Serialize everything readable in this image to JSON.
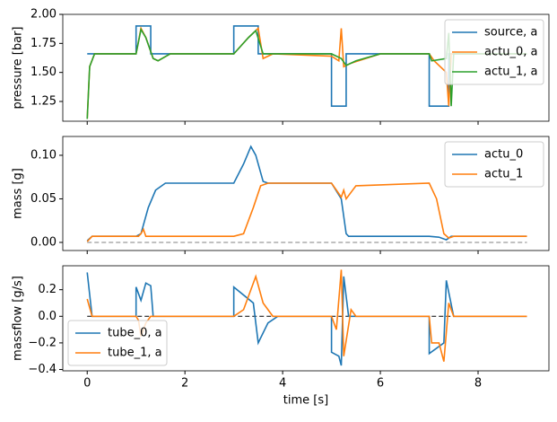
{
  "chart_data": [
    {
      "type": "line",
      "ylabel": "pressure [bar]",
      "xlim": [
        -0.5,
        9.45
      ],
      "ylim": [
        1.08,
        2.0
      ],
      "xticks": [
        0,
        2,
        4,
        6,
        8
      ],
      "yticks": [
        1.25,
        {
          "value": 1.5,
          "label": "1.50"
        },
        1.75,
        {
          "value": 2.0,
          "label": "2.00"
        }
      ],
      "legend": "upper-right",
      "series": [
        {
          "name": "source, a",
          "color": "#1f77b4",
          "x": [
            0,
            1,
            1,
            1.3,
            1.3,
            3,
            3,
            3.5,
            3.5,
            5,
            5,
            5.3,
            5.3,
            7,
            7,
            7.4,
            7.4,
            9
          ],
          "values": [
            1.66,
            1.66,
            1.9,
            1.9,
            1.66,
            1.66,
            1.9,
            1.9,
            1.66,
            1.66,
            1.21,
            1.21,
            1.66,
            1.66,
            1.21,
            1.21,
            1.66,
            1.66
          ]
        },
        {
          "name": "actu_0, a",
          "color": "#ff7f0e",
          "x": [
            0,
            0.05,
            0.15,
            1.0,
            1.1,
            1.2,
            1.35,
            1.45,
            1.7,
            3.0,
            3.3,
            3.5,
            3.6,
            3.8,
            5.0,
            5.15,
            5.2,
            5.25,
            5.4,
            6.0,
            7.0,
            7.1,
            7.35,
            7.4,
            7.45,
            7.6,
            9
          ],
          "values": [
            1.1,
            1.55,
            1.66,
            1.66,
            1.88,
            1.8,
            1.62,
            1.6,
            1.66,
            1.66,
            1.8,
            1.88,
            1.62,
            1.66,
            1.64,
            1.6,
            1.88,
            1.55,
            1.58,
            1.66,
            1.66,
            1.6,
            1.5,
            1.21,
            1.66,
            1.66,
            1.66
          ]
        },
        {
          "name": "actu_1, a",
          "color": "#2ca02c",
          "x": [
            0,
            0.05,
            0.15,
            1.0,
            1.1,
            1.2,
            1.35,
            1.45,
            1.7,
            3.0,
            3.3,
            3.45,
            3.6,
            3.8,
            5.0,
            5.2,
            5.3,
            5.5,
            6.0,
            7.0,
            7.05,
            7.35,
            7.4,
            7.45,
            7.5,
            9
          ],
          "values": [
            1.1,
            1.55,
            1.66,
            1.66,
            1.87,
            1.8,
            1.62,
            1.6,
            1.66,
            1.66,
            1.8,
            1.86,
            1.66,
            1.66,
            1.66,
            1.62,
            1.56,
            1.6,
            1.66,
            1.66,
            1.6,
            1.62,
            1.84,
            1.21,
            1.66,
            1.66
          ]
        }
      ]
    },
    {
      "type": "line",
      "ylabel": "mass [g]",
      "xlim": [
        -0.5,
        9.45
      ],
      "ylim": [
        -0.0093,
        0.1216
      ],
      "xticks": [
        0,
        2,
        4,
        6,
        8
      ],
      "yticks": [
        {
          "value": 0,
          "label": "0.00"
        },
        0.05,
        {
          "value": 0.1,
          "label": "0.10"
        }
      ],
      "legend": "upper-right",
      "hline": 0,
      "hline_color": "#808080",
      "series": [
        {
          "name": "actu_0",
          "color": "#1f77b4",
          "x": [
            0,
            0.1,
            1.0,
            1.1,
            1.25,
            1.4,
            1.6,
            3.0,
            3.2,
            3.35,
            3.45,
            3.6,
            3.7,
            5.0,
            5.2,
            5.3,
            5.35,
            7.0,
            7.2,
            7.35,
            7.45,
            9
          ],
          "values": [
            0.002,
            0.007,
            0.007,
            0.01,
            0.04,
            0.06,
            0.068,
            0.068,
            0.09,
            0.11,
            0.1,
            0.07,
            0.068,
            0.068,
            0.05,
            0.01,
            0.007,
            0.007,
            0.006,
            0.003,
            0.007,
            0.007
          ]
        },
        {
          "name": "actu_1",
          "color": "#ff7f0e",
          "x": [
            0,
            0.1,
            1.05,
            1.1,
            1.15,
            1.2,
            3.0,
            3.2,
            3.4,
            3.55,
            3.7,
            5.0,
            5.1,
            5.2,
            5.25,
            5.3,
            5.5,
            7.0,
            7.15,
            7.3,
            7.4,
            7.5,
            9
          ],
          "values": [
            0.001,
            0.007,
            0.007,
            0.01,
            0.015,
            0.007,
            0.007,
            0.01,
            0.04,
            0.065,
            0.068,
            0.068,
            0.06,
            0.052,
            0.06,
            0.05,
            0.065,
            0.068,
            0.05,
            0.01,
            0.005,
            0.007,
            0.007
          ]
        }
      ]
    },
    {
      "type": "line",
      "ylabel": "massflow [g/s]",
      "xlabel": "time [s]",
      "xlim": [
        -0.5,
        9.45
      ],
      "ylim": [
        -0.41,
        0.38
      ],
      "xticks": [
        0,
        2,
        4,
        6,
        8
      ],
      "yticks": [
        {
          "value": -0.4,
          "label": "−0.4"
        },
        {
          "value": -0.2,
          "label": "−0.2"
        },
        {
          "value": 0,
          "label": "0.0"
        },
        0.2
      ],
      "legend": "lower-left",
      "hline": 0,
      "hline_color": "#000000",
      "series": [
        {
          "name": "tube_0, a",
          "color": "#1f77b4",
          "x": [
            0,
            0.1,
            1.0,
            1.0,
            1.1,
            1.2,
            1.3,
            1.35,
            3.0,
            3.0,
            3.4,
            3.5,
            3.7,
            3.9,
            5.0,
            5.0,
            5.15,
            5.2,
            5.25,
            5.35,
            7.0,
            7.0,
            7.3,
            7.35,
            7.5,
            9
          ],
          "values": [
            0.33,
            0,
            0,
            0.22,
            0.12,
            0.25,
            0.23,
            0,
            0,
            0.22,
            0.1,
            -0.2,
            -0.05,
            0,
            0,
            -0.27,
            -0.3,
            -0.37,
            0.3,
            0,
            0,
            -0.28,
            -0.2,
            0.27,
            0,
            0
          ]
        },
        {
          "name": "tube_1, a",
          "color": "#ff7f0e",
          "x": [
            0,
            0.1,
            1.0,
            1.05,
            1.1,
            1.2,
            1.3,
            3.0,
            3.2,
            3.45,
            3.6,
            3.8,
            5.0,
            5.1,
            5.2,
            5.25,
            5.4,
            5.5,
            7.0,
            7.05,
            7.2,
            7.3,
            7.4,
            7.5,
            9
          ],
          "values": [
            0.13,
            0,
            0,
            -0.03,
            -0.15,
            -0.05,
            0,
            0,
            0.05,
            0.3,
            0.1,
            0,
            0,
            -0.1,
            0.35,
            -0.3,
            0.05,
            0,
            0,
            -0.2,
            -0.2,
            -0.34,
            0.1,
            0,
            0
          ]
        }
      ]
    }
  ]
}
